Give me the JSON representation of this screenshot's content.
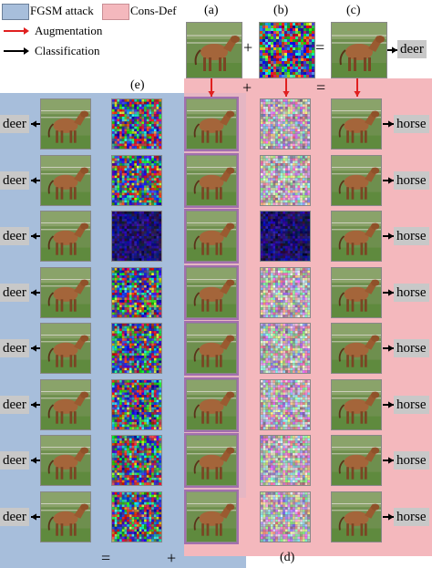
{
  "legend": {
    "fgsm": {
      "label": "FGSM attack",
      "color": "#a7bedb"
    },
    "consdef": {
      "label": "Cons-Def",
      "color": "#f4b8bd"
    },
    "augmentation": {
      "label": "Augmentation",
      "color": "#e02020"
    },
    "classification": {
      "label": "Classification",
      "color": "#000000"
    }
  },
  "panels": {
    "a": "(a)",
    "b": "(b)",
    "c": "(c)",
    "d": "(d)",
    "e": "(e)"
  },
  "operators": {
    "plus": "+",
    "equals": "="
  },
  "top_prediction": "deer",
  "left_predictions": [
    "deer",
    "deer",
    "deer",
    "deer",
    "deer",
    "deer",
    "deer",
    "deer"
  ],
  "right_predictions": [
    "horse",
    "horse",
    "horse",
    "horse",
    "horse",
    "horse",
    "horse",
    "horse"
  ]
}
